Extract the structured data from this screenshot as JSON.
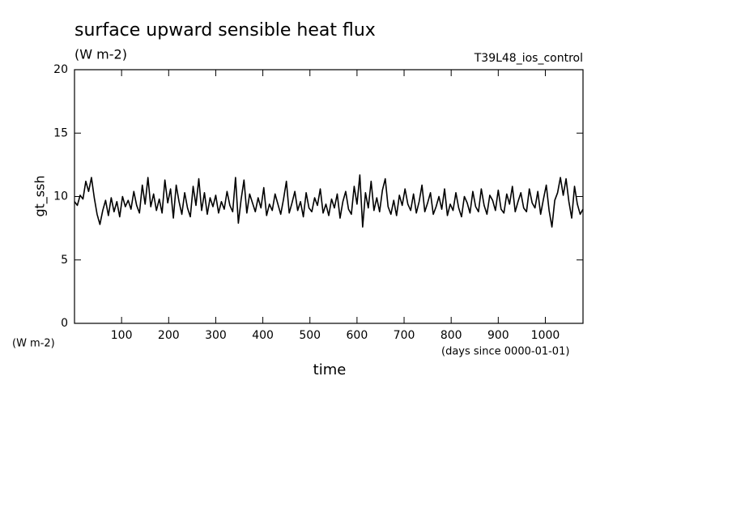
{
  "chart_data": {
    "type": "line",
    "title": "surface upward sensible heat flux",
    "subtitle": "(W m-2)",
    "annotation": "T39L48_ios_control",
    "ylabel": "gt_ssh",
    "ylabel_units": "(W m-2)",
    "xlabel": "time",
    "xlabel_units": "(days since 0000-01-01)",
    "xlim": [
      0,
      1080
    ],
    "ylim": [
      0,
      20
    ],
    "xticks": [
      100,
      200,
      300,
      400,
      500,
      600,
      700,
      800,
      900,
      1000
    ],
    "yticks": [
      0,
      5,
      10,
      15,
      20
    ],
    "grid": false,
    "x": [
      0,
      6,
      12,
      18,
      24,
      30,
      36,
      42,
      48,
      54,
      60,
      66,
      72,
      78,
      84,
      90,
      96,
      102,
      108,
      114,
      120,
      126,
      132,
      138,
      144,
      150,
      156,
      162,
      168,
      174,
      180,
      186,
      192,
      198,
      204,
      210,
      216,
      222,
      228,
      234,
      240,
      246,
      252,
      258,
      264,
      270,
      276,
      282,
      288,
      294,
      300,
      306,
      312,
      318,
      324,
      330,
      336,
      342,
      348,
      354,
      360,
      366,
      372,
      378,
      384,
      390,
      396,
      402,
      408,
      414,
      420,
      426,
      432,
      438,
      444,
      450,
      456,
      462,
      468,
      474,
      480,
      486,
      492,
      498,
      504,
      510,
      516,
      522,
      528,
      534,
      540,
      546,
      552,
      558,
      564,
      570,
      576,
      582,
      588,
      594,
      600,
      606,
      612,
      618,
      624,
      630,
      636,
      642,
      648,
      654,
      660,
      666,
      672,
      678,
      684,
      690,
      696,
      702,
      708,
      714,
      720,
      726,
      732,
      738,
      744,
      750,
      756,
      762,
      768,
      774,
      780,
      786,
      792,
      798,
      804,
      810,
      816,
      822,
      828,
      834,
      840,
      846,
      852,
      858,
      864,
      870,
      876,
      882,
      888,
      894,
      900,
      906,
      912,
      918,
      924,
      930,
      936,
      942,
      948,
      954,
      960,
      966,
      972,
      978,
      984,
      990,
      996,
      1002,
      1008,
      1014,
      1020,
      1026,
      1032,
      1038,
      1044,
      1050,
      1056,
      1062,
      1068,
      1074,
      1080
    ],
    "series": [
      {
        "name": "gt_ssh",
        "color": "#000000",
        "values": [
          9.6,
          9.3,
          10.1,
          9.8,
          11.2,
          10.4,
          11.5,
          9.9,
          8.6,
          7.8,
          8.9,
          9.7,
          8.5,
          9.9,
          8.8,
          9.6,
          8.4,
          10.0,
          9.2,
          9.7,
          9.0,
          10.4,
          9.3,
          8.7,
          10.9,
          9.4,
          11.5,
          9.2,
          10.2,
          8.9,
          9.8,
          8.7,
          11.3,
          9.5,
          10.6,
          8.3,
          10.9,
          9.6,
          8.6,
          10.3,
          9.1,
          8.4,
          10.8,
          9.3,
          11.4,
          8.9,
          10.3,
          8.6,
          9.9,
          9.2,
          10.1,
          8.7,
          9.6,
          9.0,
          10.4,
          9.3,
          8.8,
          11.5,
          7.9,
          9.8,
          11.3,
          8.7,
          10.2,
          9.5,
          8.8,
          9.9,
          9.1,
          10.7,
          8.5,
          9.4,
          8.9,
          10.2,
          9.4,
          8.6,
          9.8,
          11.2,
          8.7,
          9.5,
          10.4,
          8.9,
          9.6,
          8.4,
          10.3,
          9.1,
          8.8,
          9.9,
          9.3,
          10.6,
          8.7,
          9.4,
          8.5,
          9.8,
          9.1,
          10.2,
          8.3,
          9.6,
          10.4,
          9.0,
          8.6,
          10.8,
          9.4,
          11.7,
          7.6,
          10.3,
          9.1,
          11.2,
          8.9,
          9.9,
          8.8,
          10.5,
          11.4,
          9.2,
          8.6,
          9.7,
          8.5,
          10.1,
          9.3,
          10.6,
          9.4,
          8.9,
          10.2,
          8.7,
          9.6,
          10.9,
          8.8,
          9.5,
          10.3,
          8.6,
          9.2,
          10.0,
          9.0,
          10.6,
          8.5,
          9.4,
          8.9,
          10.3,
          9.1,
          8.4,
          10.0,
          9.5,
          8.7,
          10.4,
          9.2,
          8.8,
          10.6,
          9.3,
          8.6,
          10.1,
          9.7,
          8.9,
          10.5,
          9.0,
          8.7,
          10.2,
          9.4,
          10.8,
          8.8,
          9.6,
          10.3,
          9.1,
          8.8,
          10.6,
          9.5,
          9.1,
          10.4,
          8.6,
          9.8,
          10.9,
          8.9,
          7.6,
          9.7,
          10.3,
          11.5,
          10.1,
          11.4,
          9.6,
          8.3,
          10.8,
          9.4,
          8.6,
          9.0
        ]
      }
    ]
  }
}
